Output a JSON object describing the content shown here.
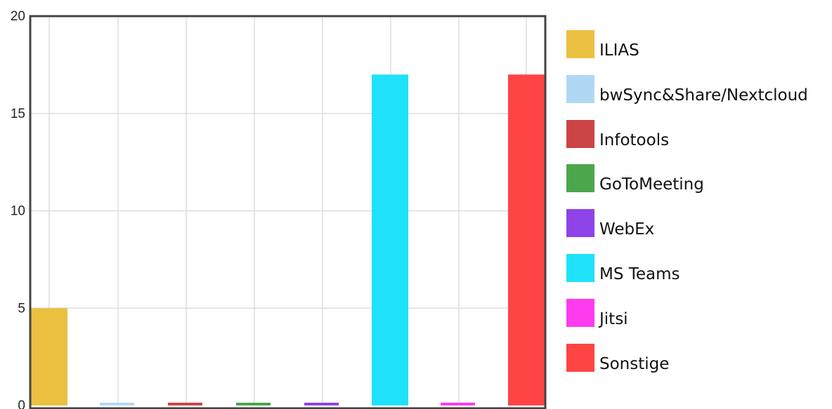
{
  "chart_data": {
    "type": "bar",
    "categories": [
      "ILIAS",
      "bwSync&Share/Nextcloud",
      "Infotools",
      "GoToMeeting",
      "WebEx",
      "MS Teams",
      "Jitsi",
      "Sonstige"
    ],
    "values": [
      5,
      0,
      0,
      0,
      0,
      17,
      0,
      17
    ],
    "colors": [
      "#ecc040",
      "#b0d8f5",
      "#cc4444",
      "#4ca64c",
      "#8e44e8",
      "#1fe2fa",
      "#ff3bf0",
      "#ff4444"
    ],
    "ylim": [
      0,
      20
    ],
    "yticks": [
      0,
      5,
      10,
      15,
      20
    ],
    "ytick_labels": [
      "0",
      "5",
      "10",
      "15",
      "20"
    ],
    "grid": true,
    "legend": {
      "position": "right",
      "entries": [
        "ILIAS",
        "bwSync&Share/Nextcloud",
        "Infotools",
        "GoToMeeting",
        "WebEx",
        "MS Teams",
        "Jitsi",
        "Sonstige"
      ]
    }
  }
}
